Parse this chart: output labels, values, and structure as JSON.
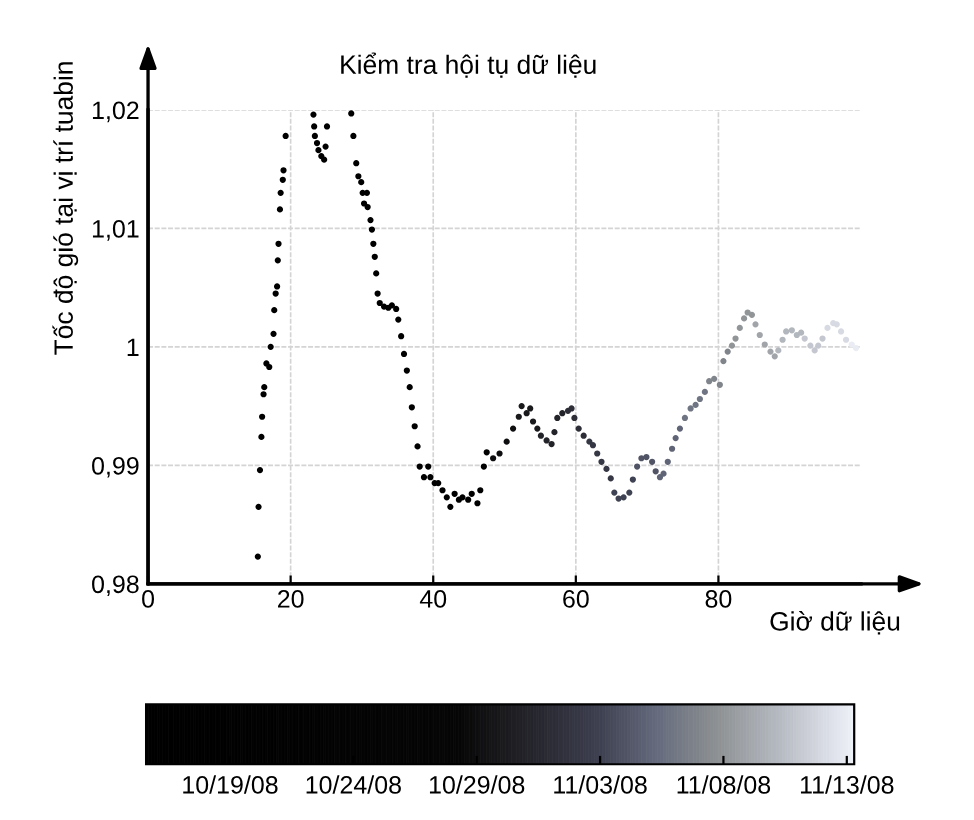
{
  "chart_data": {
    "type": "scatter",
    "title": "Kiểm tra hội tụ dữ liệu",
    "xlabel": "Giờ dữ liệu",
    "ylabel": "Tốc độ gió tại vị trí tuabin",
    "x": [
      15.4,
      15.5,
      15.7,
      15.9,
      16.0,
      16.2,
      16.3,
      16.6,
      17.0,
      17.2,
      17.6,
      17.7,
      17.9,
      18.1,
      18.2,
      18.3,
      18.5,
      18.6,
      18.9,
      19.0,
      19.3,
      23.2,
      23.3,
      23.4,
      23.7,
      23.9,
      24.3,
      24.7,
      24.9,
      25.1,
      28.5,
      28.8,
      29.2,
      29.5,
      29.9,
      30.1,
      30.3,
      30.7,
      30.8,
      31.2,
      31.4,
      31.6,
      31.8,
      32.0,
      32.2,
      32.5,
      33.1,
      33.7,
      34.2,
      34.8,
      35.1,
      35.5,
      35.9,
      36.3,
      36.7,
      37.0,
      37.4,
      37.8,
      38.1,
      38.7,
      39.3,
      39.6,
      40.2,
      40.7,
      41.3,
      41.9,
      42.4,
      43.0,
      43.6,
      44.1,
      44.9,
      45.4,
      46.2,
      46.6,
      47.1,
      47.5,
      48.4,
      49.3,
      50.3,
      51.2,
      52.0,
      52.4,
      53.1,
      53.6,
      54.0,
      54.6,
      55.1,
      55.9,
      56.6,
      57.0,
      57.4,
      58.1,
      58.9,
      59.4,
      59.8,
      60.4,
      61.1,
      61.9,
      62.4,
      63.0,
      63.6,
      64.3,
      64.9,
      65.4,
      66.0,
      66.7,
      67.5,
      68.0,
      68.6,
      69.2,
      69.9,
      70.7,
      71.2,
      71.8,
      72.3,
      72.9,
      73.5,
      74.0,
      74.6,
      75.3,
      76.1,
      76.8,
      77.4,
      78.1,
      78.7,
      79.4,
      80.2,
      80.7,
      81.3,
      81.9,
      82.4,
      83.0,
      83.6,
      84.1,
      84.7,
      85.2,
      85.8,
      86.5,
      87.3,
      87.9,
      88.4,
      89.0,
      89.5,
      90.3,
      91.0,
      91.6,
      92.1,
      92.9,
      93.5,
      94.0,
      94.6,
      95.3,
      96.1,
      96.6,
      97.2,
      97.9,
      98.7,
      99.3
    ],
    "values": [
      0.9823,
      0.9865,
      0.9896,
      0.9924,
      0.9941,
      0.996,
      0.9966,
      0.9986,
      0.9983,
      1.0,
      1.0011,
      1.0031,
      1.0045,
      1.0051,
      1.0073,
      1.0087,
      1.0116,
      1.013,
      1.0141,
      1.0149,
      1.0178,
      1.0196,
      1.0186,
      1.0178,
      1.0172,
      1.0166,
      1.0161,
      1.0158,
      1.0169,
      1.0186,
      1.0197,
      1.0178,
      1.0155,
      1.0144,
      1.0139,
      1.013,
      1.0121,
      1.013,
      1.0118,
      1.0107,
      1.0099,
      1.0087,
      1.0076,
      1.0062,
      1.0045,
      1.0037,
      1.0034,
      1.0033,
      1.0035,
      1.0032,
      1.0023,
      1.0009,
      0.9994,
      0.998,
      0.9966,
      0.9949,
      0.9933,
      0.9916,
      0.9899,
      0.989,
      0.9899,
      0.989,
      0.9885,
      0.9885,
      0.9879,
      0.9873,
      0.9865,
      0.9876,
      0.9871,
      0.9873,
      0.9871,
      0.9876,
      0.9868,
      0.9879,
      0.9899,
      0.9911,
      0.9906,
      0.991,
      0.992,
      0.9931,
      0.9941,
      0.995,
      0.9944,
      0.9948,
      0.9937,
      0.9931,
      0.9925,
      0.9921,
      0.9918,
      0.9928,
      0.994,
      0.9944,
      0.9946,
      0.9948,
      0.994,
      0.9931,
      0.9925,
      0.992,
      0.9917,
      0.991,
      0.9903,
      0.9897,
      0.9889,
      0.9877,
      0.9872,
      0.9873,
      0.9877,
      0.9888,
      0.9899,
      0.9906,
      0.9907,
      0.9903,
      0.9895,
      0.989,
      0.9893,
      0.9903,
      0.9914,
      0.9923,
      0.9931,
      0.994,
      0.9948,
      0.9951,
      0.9956,
      0.9962,
      0.9971,
      0.9973,
      0.9968,
      0.9988,
      0.9996,
      1.0001,
      1.0007,
      1.0016,
      1.0024,
      1.0029,
      1.0027,
      1.0019,
      1.001,
      1.0002,
      0.9996,
      0.9992,
      0.9997,
      1.0006,
      1.0013,
      1.0014,
      1.001,
      1.0012,
      1.0007,
      1.0001,
      0.9997,
      1.0001,
      1.0007,
      1.0016,
      1.002,
      1.0019,
      1.0013,
      1.0006,
      1.0002,
      0.9999
    ],
    "cvalues": [
      null,
      null,
      null,
      null,
      null,
      null,
      null,
      null,
      null,
      null,
      null,
      null,
      null,
      null,
      null,
      null,
      null,
      null,
      null,
      null,
      null,
      null,
      null,
      null,
      null,
      null,
      null,
      null,
      null,
      null,
      null,
      null,
      null,
      null,
      null,
      null,
      null,
      null,
      null,
      null,
      null,
      null,
      null,
      null,
      null,
      null,
      null,
      null,
      null,
      null,
      null,
      null,
      null,
      null,
      null,
      null,
      null,
      null,
      null,
      null,
      null,
      null,
      null,
      null,
      null,
      null,
      null,
      null,
      null,
      null,
      null,
      null,
      null,
      null,
      null,
      null,
      303,
      303,
      303,
      303,
      304,
      304,
      304,
      304,
      304,
      304,
      305,
      305,
      305,
      305,
      305,
      305,
      306,
      306,
      306,
      306,
      306,
      307,
      307,
      307,
      307,
      307,
      307,
      308,
      308,
      308,
      308,
      308,
      309,
      309,
      309,
      309,
      309,
      310,
      310,
      310,
      310,
      310,
      310,
      311,
      311,
      311,
      311,
      311,
      312,
      312,
      312,
      312,
      312,
      313,
      313,
      313,
      313,
      313,
      313,
      314,
      314,
      314,
      314,
      314,
      315,
      315,
      315,
      315,
      315,
      315,
      316,
      316,
      316,
      316,
      316,
      317,
      317,
      317,
      317,
      317,
      318,
      318
    ],
    "clim": [
      289.6,
      318.3
    ],
    "cticks": [
      {
        "value": 293,
        "label": "10/19/08"
      },
      {
        "value": 298,
        "label": "10/24/08"
      },
      {
        "value": 303,
        "label": "10/29/08"
      },
      {
        "value": 308,
        "label": "11/03/08"
      },
      {
        "value": 313,
        "label": "11/08/08"
      },
      {
        "value": 318,
        "label": "11/13/08"
      }
    ],
    "xlim": [
      0,
      100
    ],
    "xticks": [
      0,
      20,
      40,
      60,
      80
    ],
    "ylim": [
      0.98,
      1.02
    ],
    "yticks": [
      {
        "value": 0.98,
        "label": "0,98"
      },
      {
        "value": 0.99,
        "label": "0,99"
      },
      1,
      {
        "value": 1.01,
        "label": "1,01"
      },
      {
        "value": 1.02,
        "label": "1,02"
      }
    ],
    "grid": true,
    "marker": "circle"
  }
}
